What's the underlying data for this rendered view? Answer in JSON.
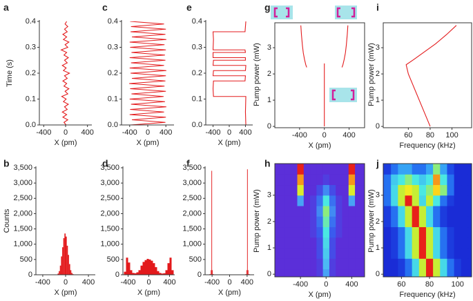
{
  "chart_data": [
    {
      "type": "line",
      "panel": "a",
      "xlabel": "X (pm)",
      "ylabel": "Time (s)",
      "xlim": [
        -480,
        480
      ],
      "ylim": [
        0,
        0.4
      ],
      "xticks": [
        -400,
        0,
        400
      ],
      "yticks": [
        {
          "value": 0,
          "label": "0.0"
        },
        0.1,
        0.2,
        0.3,
        0.4
      ],
      "series": [
        {
          "color": "#e31a1c",
          "x": [
            10,
            -30,
            40,
            -50,
            20,
            -60,
            30,
            -20,
            50,
            -40,
            10,
            -70,
            40,
            -10,
            60,
            -30,
            20,
            -50,
            30,
            -20,
            70,
            -40,
            10,
            -60,
            30,
            -20,
            50,
            -30,
            20,
            -80,
            40,
            -10,
            60,
            -40,
            20,
            -50,
            30,
            -20,
            40,
            -10,
            20
          ],
          "values": [
            0,
            0.01,
            0.02,
            0.03,
            0.04,
            0.05,
            0.06,
            0.07,
            0.08,
            0.09,
            0.1,
            0.11,
            0.12,
            0.13,
            0.14,
            0.15,
            0.16,
            0.17,
            0.18,
            0.19,
            0.2,
            0.21,
            0.22,
            0.23,
            0.24,
            0.25,
            0.26,
            0.27,
            0.28,
            0.29,
            0.3,
            0.31,
            0.32,
            0.33,
            0.34,
            0.35,
            0.36,
            0.37,
            0.38,
            0.39,
            0.4
          ]
        }
      ]
    },
    {
      "type": "histogram",
      "panel": "b",
      "xlabel": "X (pm)",
      "ylabel": "Counts",
      "xlim": [
        -520,
        520
      ],
      "ylim": [
        0,
        3500
      ],
      "xticks": [
        -400,
        0,
        400
      ],
      "yticks": [
        0,
        500,
        {
          "value": 1000,
          "label": "1,000"
        },
        {
          "value": 1500,
          "label": "1,500"
        },
        {
          "value": 2000,
          "label": "2,000"
        },
        {
          "value": 2500,
          "label": "2,500"
        },
        {
          "value": 3000,
          "label": "3,000"
        },
        {
          "value": 3500,
          "label": "3,500"
        }
      ],
      "color": "#e31a1c",
      "bins": [
        -160,
        -140,
        -120,
        -100,
        -80,
        -60,
        -40,
        -20,
        0,
        20,
        40,
        60,
        80,
        100,
        120,
        140,
        160
      ],
      "counts": [
        10,
        40,
        120,
        300,
        600,
        900,
        1200,
        1350,
        1250,
        950,
        650,
        350,
        150,
        60,
        20,
        5
      ]
    },
    {
      "type": "line",
      "panel": "c",
      "xlabel": "X (pm)",
      "xlim": [
        -580,
        580
      ],
      "ylim": [
        0,
        0.4
      ],
      "xticks": [
        -400,
        0,
        400
      ],
      "yticks": [
        {
          "value": 0,
          "label": "0.0"
        },
        0.1,
        0.2,
        0.3,
        0.4
      ],
      "series": [
        {
          "color": "#e31a1c",
          "x": [
            -380,
            390,
            -350,
            400,
            -400,
            360,
            -390,
            410,
            -370,
            380,
            -400,
            350,
            -360,
            400,
            -390,
            370,
            -410,
            390,
            -350,
            400,
            -380,
            410,
            -400,
            360,
            -370,
            390,
            -400,
            380,
            -360,
            400,
            -390,
            370,
            -400,
            410,
            -350,
            390,
            -380,
            400,
            -370,
            360,
            -390
          ],
          "values": [
            0,
            0.01,
            0.02,
            0.03,
            0.04,
            0.05,
            0.06,
            0.07,
            0.08,
            0.09,
            0.1,
            0.11,
            0.12,
            0.13,
            0.14,
            0.15,
            0.16,
            0.17,
            0.18,
            0.19,
            0.2,
            0.21,
            0.22,
            0.23,
            0.24,
            0.25,
            0.26,
            0.27,
            0.28,
            0.29,
            0.3,
            0.31,
            0.32,
            0.33,
            0.34,
            0.35,
            0.36,
            0.37,
            0.38,
            0.39,
            0.4
          ]
        }
      ]
    },
    {
      "type": "histogram",
      "panel": "d",
      "xlabel": "X (pm)",
      "xlim": [
        -500,
        500
      ],
      "ylim": [
        0,
        3500
      ],
      "xticks": [
        -400,
        0,
        400
      ],
      "yticks": [
        0,
        500,
        {
          "value": 1000,
          "label": "1,000"
        },
        {
          "value": 1500,
          "label": "1,500"
        },
        {
          "value": 2000,
          "label": "2,000"
        },
        {
          "value": 2500,
          "label": "2,500"
        },
        {
          "value": 3000,
          "label": "3,000"
        },
        {
          "value": 3500,
          "label": "3,500"
        }
      ],
      "color": "#e31a1c",
      "bins": [
        -480,
        -440,
        -400,
        -360,
        -320,
        -280,
        -240,
        -200,
        -160,
        -120,
        -80,
        -40,
        0,
        40,
        80,
        120,
        160,
        200,
        240,
        280,
        320,
        360,
        400,
        440,
        480
      ],
      "counts": [
        100,
        560,
        400,
        150,
        60,
        50,
        80,
        150,
        300,
        420,
        480,
        520,
        500,
        460,
        380,
        250,
        120,
        60,
        40,
        50,
        150,
        380,
        560,
        150
      ]
    },
    {
      "type": "line",
      "panel": "e",
      "xlabel": "X (pm)",
      "xlim": [
        -580,
        580
      ],
      "ylim": [
        0,
        0.4
      ],
      "xticks": [
        -400,
        0,
        400
      ],
      "yticks": [
        {
          "value": 0,
          "label": "0.0"
        },
        0.1,
        0.2,
        0.3,
        0.4
      ],
      "series": [
        {
          "color": "#e31a1c",
          "x": [
            410,
            400,
            410,
            -390,
            -400,
            -390,
            390,
            400,
            -400,
            -390,
            400,
            410,
            -400,
            -390,
            400,
            400,
            -400,
            -400,
            400,
            390,
            -400,
            -390,
            -400,
            390,
            410
          ],
          "values": [
            0,
            0.05,
            0.11,
            0.11,
            0.14,
            0.17,
            0.17,
            0.19,
            0.19,
            0.21,
            0.21,
            0.23,
            0.23,
            0.25,
            0.25,
            0.26,
            0.26,
            0.28,
            0.28,
            0.29,
            0.29,
            0.33,
            0.36,
            0.36,
            0.4
          ]
        }
      ]
    },
    {
      "type": "histogram",
      "panel": "f",
      "xlabel": "X (pm)",
      "xlim": [
        -560,
        560
      ],
      "ylim": [
        0,
        3500
      ],
      "xticks": [
        -400,
        0,
        400
      ],
      "yticks": [
        0,
        500,
        {
          "value": 1000,
          "label": "1,000"
        },
        {
          "value": 1500,
          "label": "1,500"
        },
        {
          "value": 2000,
          "label": "2,000"
        },
        {
          "value": 2500,
          "label": "2,500"
        },
        {
          "value": 3000,
          "label": "3,000"
        },
        {
          "value": 3500,
          "label": "3,500"
        }
      ],
      "color": "#e31a1c",
      "bins": [
        -460,
        -430,
        -415,
        -400,
        -385,
        -360,
        360,
        385,
        400,
        415,
        430,
        460
      ],
      "counts": [
        20,
        150,
        3400,
        150,
        20,
        3,
        20,
        150,
        3450,
        150,
        20
      ]
    },
    {
      "type": "line",
      "panel": "g",
      "xlabel": "X (pm)",
      "ylabel": "Pump power (mW)",
      "xlim": [
        -800,
        650
      ],
      "ylim": [
        -0.05,
        3.95
      ],
      "xticks": [
        -400,
        0,
        400
      ],
      "yticks": [
        0,
        1,
        2,
        3
      ],
      "box": true,
      "series": [
        {
          "color": "#e31a1c",
          "x": [
            -380,
            -370,
            -355,
            -340,
            -320,
            -300,
            -285
          ],
          "values": [
            3.85,
            3.5,
            3.1,
            2.8,
            2.55,
            2.35,
            2.25
          ]
        },
        {
          "color": "#e31a1c",
          "x": [
            285,
            300,
            320,
            340,
            355,
            370,
            380
          ],
          "values": [
            2.25,
            2.35,
            2.55,
            2.8,
            3.1,
            3.5,
            3.85
          ]
        },
        {
          "color": "#e31a1c",
          "x": [
            0,
            0
          ],
          "values": [
            0,
            2.4
          ]
        }
      ]
    },
    {
      "type": "heatmap",
      "panel": "h",
      "xlabel": "X (pm)",
      "ylabel": "Pump power (mW)",
      "xlim": [
        -800,
        600
      ],
      "ylim": [
        -0.1,
        4.2
      ],
      "xticks": [
        -400,
        0,
        400
      ],
      "yticks": [
        0,
        1,
        2,
        3
      ],
      "box": true,
      "colorscale": [
        "#5b2fd9",
        "#3660f0",
        "#4cb4f6",
        "#4ae8e2",
        "#b8f03c",
        "#ffe81a",
        "#e8201a"
      ],
      "x": [
        -800,
        -700,
        -600,
        -500,
        -400,
        -300,
        -200,
        -100,
        0,
        100,
        200,
        300,
        400,
        500,
        600
      ],
      "y": [
        0,
        0.4,
        0.8,
        1.2,
        1.6,
        2.0,
        2.4,
        2.8,
        3.2,
        3.6,
        4.0
      ],
      "z": [
        [
          0,
          0,
          0,
          0,
          0,
          0,
          0,
          0.05,
          0.3,
          0.05,
          0,
          0,
          0,
          0,
          0
        ],
        [
          0,
          0,
          0,
          0,
          0,
          0,
          0,
          0.05,
          0.35,
          0.05,
          0,
          0,
          0,
          0,
          0
        ],
        [
          0,
          0,
          0,
          0,
          0,
          0,
          0,
          0.1,
          0.4,
          0.1,
          0,
          0,
          0,
          0,
          0
        ],
        [
          0,
          0,
          0,
          0,
          0,
          0,
          0,
          0.1,
          0.45,
          0.1,
          0,
          0,
          0,
          0,
          0
        ],
        [
          0,
          0,
          0,
          0,
          0,
          0,
          0.05,
          0.15,
          0.5,
          0.15,
          0.05,
          0,
          0,
          0,
          0
        ],
        [
          0,
          0,
          0,
          0,
          0,
          0,
          0.05,
          0.2,
          0.55,
          0.2,
          0.05,
          0,
          0,
          0,
          0
        ],
        [
          0,
          0,
          0,
          0,
          0,
          0,
          0.05,
          0.25,
          0.6,
          0.25,
          0.05,
          0,
          0,
          0,
          0
        ],
        [
          0,
          0,
          0,
          0,
          0.3,
          0,
          0.05,
          0.2,
          0.5,
          0.2,
          0.05,
          0,
          0.3,
          0,
          0
        ],
        [
          0,
          0,
          0,
          0,
          0.75,
          0,
          0,
          0.1,
          0.25,
          0.1,
          0,
          0,
          0.75,
          0,
          0
        ],
        [
          0,
          0,
          0,
          0,
          0.9,
          0,
          0,
          0,
          0.05,
          0,
          0,
          0,
          0.9,
          0,
          0
        ],
        [
          0,
          0,
          0,
          0,
          1,
          0,
          0,
          0,
          0,
          0,
          0,
          0,
          1,
          0,
          0
        ]
      ]
    },
    {
      "type": "line",
      "panel": "i",
      "xlabel": "Frequency (kHz)",
      "ylabel": "Pump power (mW)",
      "xlim": [
        37,
        118
      ],
      "ylim": [
        -0.05,
        3.95
      ],
      "xticks": [
        60,
        80,
        100
      ],
      "yticks": [
        0,
        1,
        2,
        3
      ],
      "box": true,
      "series": [
        {
          "color": "#e31a1c",
          "x": [
            80,
            75,
            70,
            65,
            60,
            58,
            65,
            75,
            85,
            95,
            104
          ],
          "values": [
            0,
            0.5,
            1,
            1.5,
            2,
            2.35,
            2.55,
            2.85,
            3.15,
            3.5,
            3.85
          ]
        }
      ]
    },
    {
      "type": "heatmap",
      "panel": "j",
      "xlabel": "Frequency (kHz)",
      "ylabel": "Pump power (mW)",
      "xlim": [
        47,
        110
      ],
      "ylim": [
        -0.1,
        4.2
      ],
      "xticks": [
        60,
        80,
        100
      ],
      "yticks": [
        0,
        1,
        2,
        3
      ],
      "box": true,
      "colorscale": [
        "#1a2cd6",
        "#2060f0",
        "#3cb4f6",
        "#4ae8e2",
        "#b8f03c",
        "#ffe81a",
        "#e8201a"
      ],
      "x": [
        45,
        50,
        55,
        60,
        65,
        70,
        75,
        80,
        85,
        90,
        95,
        100,
        105,
        110,
        115
      ],
      "y": [
        0,
        0.4,
        0.8,
        1.2,
        1.6,
        2.0,
        2.4,
        2.8,
        3.2,
        3.6,
        4.0
      ],
      "z": [
        [
          0,
          0,
          0,
          0.05,
          0.2,
          0.45,
          0.7,
          1,
          0.7,
          0.45,
          0.2,
          0.05,
          0,
          0,
          0
        ],
        [
          0,
          0,
          0,
          0.05,
          0.2,
          0.45,
          0.7,
          1,
          0.7,
          0.45,
          0.2,
          0.05,
          0,
          0,
          0
        ],
        [
          0,
          0,
          0.05,
          0.2,
          0.45,
          0.7,
          1,
          0.7,
          0.45,
          0.2,
          0.05,
          0,
          0,
          0,
          0
        ],
        [
          0,
          0,
          0.05,
          0.2,
          0.45,
          0.7,
          1,
          0.7,
          0.45,
          0.2,
          0.05,
          0,
          0,
          0,
          0
        ],
        [
          0,
          0,
          0.05,
          0.2,
          0.45,
          0.7,
          1,
          0.7,
          0.45,
          0.2,
          0.05,
          0,
          0,
          0,
          0
        ],
        [
          0,
          0.05,
          0.2,
          0.45,
          0.7,
          1,
          0.7,
          0.45,
          0.2,
          0.05,
          0,
          0,
          0,
          0,
          0
        ],
        [
          0,
          0.05,
          0.2,
          0.45,
          0.7,
          1,
          0.7,
          0.45,
          0.2,
          0.05,
          0,
          0,
          0,
          0,
          0
        ],
        [
          0.05,
          0.2,
          0.45,
          0.7,
          1,
          0.7,
          0.45,
          0.7,
          0.5,
          0.2,
          0.05,
          0,
          0,
          0,
          0
        ],
        [
          0.05,
          0.2,
          0.45,
          0.7,
          0.8,
          0.7,
          0.5,
          0.6,
          0.85,
          0.6,
          0.2,
          0,
          0,
          0,
          0
        ],
        [
          0.05,
          0.2,
          0.4,
          0.5,
          0.6,
          0.5,
          0.4,
          0.5,
          0.9,
          0.5,
          0.2,
          0,
          0,
          0,
          0
        ],
        [
          0,
          0.05,
          0.2,
          0.3,
          0.3,
          0.2,
          0.2,
          0.3,
          0.6,
          0.3,
          0.1,
          0,
          0,
          0,
          0
        ]
      ]
    }
  ]
}
